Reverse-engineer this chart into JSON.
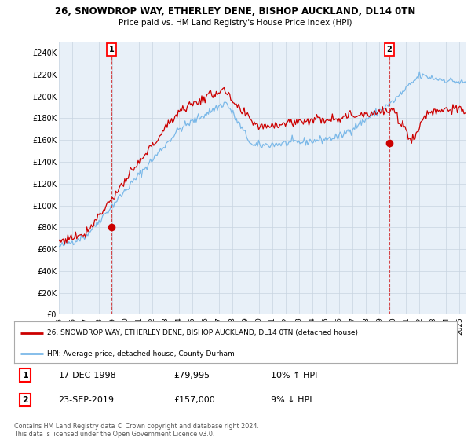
{
  "title1": "26, SNOWDROP WAY, ETHERLEY DENE, BISHOP AUCKLAND, DL14 0TN",
  "title2": "Price paid vs. HM Land Registry's House Price Index (HPI)",
  "ylabel_ticks": [
    "£0",
    "£20K",
    "£40K",
    "£60K",
    "£80K",
    "£100K",
    "£120K",
    "£140K",
    "£160K",
    "£180K",
    "£200K",
    "£220K",
    "£240K"
  ],
  "ytick_values": [
    0,
    20000,
    40000,
    60000,
    80000,
    100000,
    120000,
    140000,
    160000,
    180000,
    200000,
    220000,
    240000
  ],
  "ylim": [
    0,
    250000
  ],
  "xlim_start": 1995.0,
  "xlim_end": 2025.5,
  "hpi_color": "#7ab8e8",
  "price_color": "#cc0000",
  "chart_bg": "#e8f0f8",
  "marker1_x": 1998.96,
  "marker1_y": 79995,
  "marker1_label": "1",
  "marker2_x": 2019.72,
  "marker2_y": 157000,
  "marker2_label": "2",
  "legend_line1": "26, SNOWDROP WAY, ETHERLEY DENE, BISHOP AUCKLAND, DL14 0TN (detached house)",
  "legend_line2": "HPI: Average price, detached house, County Durham",
  "table_row1_num": "1",
  "table_row1_date": "17-DEC-1998",
  "table_row1_price": "£79,995",
  "table_row1_hpi": "10% ↑ HPI",
  "table_row2_num": "2",
  "table_row2_date": "23-SEP-2019",
  "table_row2_price": "£157,000",
  "table_row2_hpi": "9% ↓ HPI",
  "footer": "Contains HM Land Registry data © Crown copyright and database right 2024.\nThis data is licensed under the Open Government Licence v3.0.",
  "background_color": "#ffffff",
  "grid_color": "#c8d4e0"
}
